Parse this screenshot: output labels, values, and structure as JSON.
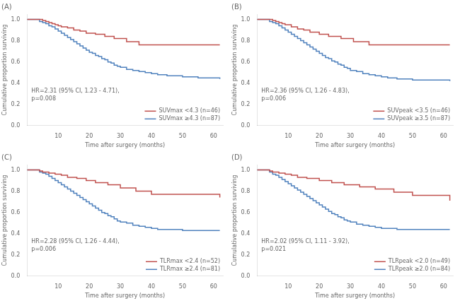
{
  "chart_data": [
    {
      "type": "step",
      "title": "(A)",
      "xlabel": "Time after surgery (months)",
      "ylabel": "Cumulative proportion surviving",
      "annotations": [
        "HR=2.31 (95% CI, 1.23 - 4.71),\np=0.008"
      ],
      "series": [
        {
          "name": "SUVmax <4.3 (n=46)",
          "color": "#c0504d",
          "x": [
            0,
            5,
            6,
            7,
            8,
            9,
            10,
            11,
            13,
            15,
            17,
            19,
            22,
            25,
            28,
            32,
            36,
            62
          ],
          "values": [
            1.0,
            0.99,
            0.98,
            0.97,
            0.96,
            0.95,
            0.94,
            0.93,
            0.92,
            0.9,
            0.89,
            0.87,
            0.86,
            0.84,
            0.82,
            0.79,
            0.76,
            0.76
          ]
        },
        {
          "name": "SUVmax ≥4.3 (n=87)",
          "color": "#4f81bd",
          "x": [
            0,
            4,
            5,
            6,
            7,
            8,
            9,
            10,
            11,
            12,
            13,
            14,
            15,
            16,
            17,
            18,
            19,
            20,
            21,
            22,
            23,
            24,
            25,
            26,
            27,
            28,
            29,
            30,
            32,
            34,
            36,
            38,
            40,
            42,
            45,
            50,
            55,
            62
          ],
          "values": [
            1.0,
            0.98,
            0.97,
            0.96,
            0.94,
            0.93,
            0.91,
            0.89,
            0.87,
            0.85,
            0.83,
            0.81,
            0.79,
            0.77,
            0.75,
            0.73,
            0.71,
            0.69,
            0.68,
            0.66,
            0.65,
            0.63,
            0.62,
            0.6,
            0.59,
            0.57,
            0.56,
            0.55,
            0.53,
            0.52,
            0.51,
            0.5,
            0.49,
            0.48,
            0.47,
            0.46,
            0.45,
            0.44
          ]
        }
      ],
      "xlim": [
        0,
        63
      ],
      "ylim": [
        0.0,
        1.05
      ],
      "xticks": [
        10,
        20,
        30,
        40,
        50,
        60
      ],
      "yticks": [
        {
          "value": 0.0,
          "label": "0.0"
        },
        0.2,
        0.4,
        0.6,
        0.8,
        {
          "value": 1.0,
          "label": "1.0"
        }
      ],
      "grid": false,
      "legend": "lower right"
    },
    {
      "type": "step",
      "title": "(B)",
      "xlabel": "Time after surgery (months)",
      "ylabel": "Cumulative proportion surviving",
      "annotations": [
        "HR=2.36 (95% CI, 1.26 - 4.83),\np=0.006"
      ],
      "series": [
        {
          "name": "SUVpeak <3.5 (n=46)",
          "color": "#c0504d",
          "x": [
            0,
            5,
            6,
            7,
            8,
            9,
            11,
            13,
            15,
            17,
            20,
            23,
            27,
            31,
            36,
            62
          ],
          "values": [
            1.0,
            0.99,
            0.98,
            0.97,
            0.96,
            0.95,
            0.93,
            0.91,
            0.9,
            0.88,
            0.86,
            0.84,
            0.82,
            0.79,
            0.76,
            0.76
          ]
        },
        {
          "name": "SUVpeak ≥3.5 (n=87)",
          "color": "#4f81bd",
          "x": [
            0,
            4,
            5,
            6,
            7,
            8,
            9,
            10,
            11,
            12,
            13,
            14,
            15,
            16,
            17,
            18,
            19,
            20,
            21,
            22,
            23,
            24,
            25,
            26,
            27,
            28,
            29,
            30,
            32,
            34,
            36,
            38,
            40,
            42,
            45,
            50,
            55,
            62
          ],
          "values": [
            1.0,
            0.98,
            0.97,
            0.96,
            0.94,
            0.92,
            0.9,
            0.88,
            0.86,
            0.84,
            0.82,
            0.8,
            0.78,
            0.76,
            0.74,
            0.72,
            0.7,
            0.68,
            0.66,
            0.64,
            0.63,
            0.61,
            0.6,
            0.58,
            0.57,
            0.55,
            0.54,
            0.52,
            0.51,
            0.49,
            0.48,
            0.47,
            0.46,
            0.45,
            0.44,
            0.43,
            0.43,
            0.42
          ]
        }
      ],
      "xlim": [
        0,
        63
      ],
      "ylim": [
        0.0,
        1.05
      ],
      "xticks": [
        10,
        20,
        30,
        40,
        50,
        60
      ],
      "yticks": [
        {
          "value": 0.0,
          "label": "0.0"
        },
        0.2,
        0.4,
        0.6,
        0.8,
        {
          "value": 1.0,
          "label": "1.0"
        }
      ],
      "grid": false,
      "legend": "lower right"
    },
    {
      "type": "step",
      "title": "(C)",
      "xlabel": "Time after surgery (months)",
      "ylabel": "Cumulative proportion surviving",
      "annotations": [
        "HR=2.28 (95% CI, 1.26 - 4.44),\np=0.006"
      ],
      "series": [
        {
          "name": "TLRmax <2.4 (n=52)",
          "color": "#c0504d",
          "x": [
            0,
            4,
            5,
            7,
            9,
            11,
            13,
            16,
            19,
            22,
            26,
            30,
            35,
            40,
            62
          ],
          "values": [
            1.0,
            0.99,
            0.98,
            0.97,
            0.96,
            0.95,
            0.93,
            0.92,
            0.9,
            0.88,
            0.86,
            0.83,
            0.8,
            0.77,
            0.74
          ]
        },
        {
          "name": "TLRmax ≥2.4 (n=81)",
          "color": "#4f81bd",
          "x": [
            0,
            4,
            5,
            6,
            7,
            8,
            9,
            10,
            11,
            12,
            13,
            14,
            15,
            16,
            17,
            18,
            19,
            20,
            21,
            22,
            23,
            24,
            25,
            26,
            27,
            28,
            29,
            30,
            32,
            34,
            36,
            38,
            40,
            42,
            45,
            50,
            55,
            62
          ],
          "values": [
            1.0,
            0.98,
            0.97,
            0.96,
            0.94,
            0.92,
            0.9,
            0.88,
            0.86,
            0.84,
            0.82,
            0.8,
            0.78,
            0.76,
            0.74,
            0.72,
            0.7,
            0.68,
            0.66,
            0.64,
            0.62,
            0.6,
            0.59,
            0.57,
            0.56,
            0.54,
            0.52,
            0.51,
            0.5,
            0.48,
            0.47,
            0.46,
            0.45,
            0.44,
            0.44,
            0.43,
            0.43,
            0.43
          ]
        }
      ],
      "xlim": [
        0,
        63
      ],
      "ylim": [
        0.0,
        1.05
      ],
      "xticks": [
        10,
        20,
        30,
        40,
        50,
        60
      ],
      "yticks": [
        {
          "value": 0.0,
          "label": "0.0"
        },
        0.2,
        0.4,
        0.6,
        0.8,
        {
          "value": 1.0,
          "label": "1.0"
        }
      ],
      "grid": false,
      "legend": "lower right"
    },
    {
      "type": "step",
      "title": "(D)",
      "xlabel": "Time after surgery (months)",
      "ylabel": "Cumulative proportion surviving",
      "annotations": [
        "HR=2.02 (95% CI, 1.11 - 3.92),\np=0.021"
      ],
      "series": [
        {
          "name": "TLRpeak <2.0 (n=49)",
          "color": "#c0504d",
          "x": [
            0,
            4,
            5,
            7,
            9,
            11,
            13,
            16,
            20,
            24,
            28,
            33,
            38,
            44,
            50,
            62
          ],
          "values": [
            1.0,
            0.99,
            0.98,
            0.97,
            0.96,
            0.95,
            0.93,
            0.92,
            0.9,
            0.88,
            0.86,
            0.84,
            0.82,
            0.79,
            0.76,
            0.71
          ]
        },
        {
          "name": "TLRpeak ≥2.0 (n=84)",
          "color": "#4f81bd",
          "x": [
            0,
            4,
            5,
            6,
            7,
            8,
            9,
            10,
            11,
            12,
            13,
            14,
            15,
            16,
            17,
            18,
            19,
            20,
            21,
            22,
            23,
            24,
            25,
            26,
            27,
            28,
            29,
            30,
            32,
            34,
            36,
            38,
            40,
            42,
            45,
            50,
            55,
            62
          ],
          "values": [
            1.0,
            0.98,
            0.96,
            0.95,
            0.93,
            0.91,
            0.89,
            0.87,
            0.85,
            0.83,
            0.81,
            0.79,
            0.77,
            0.75,
            0.73,
            0.71,
            0.69,
            0.67,
            0.65,
            0.63,
            0.61,
            0.59,
            0.58,
            0.56,
            0.55,
            0.53,
            0.52,
            0.51,
            0.49,
            0.48,
            0.47,
            0.46,
            0.45,
            0.45,
            0.44,
            0.44,
            0.44,
            0.44
          ]
        }
      ],
      "xlim": [
        0,
        63
      ],
      "ylim": [
        0.0,
        1.05
      ],
      "xticks": [
        10,
        20,
        30,
        40,
        50,
        60
      ],
      "yticks": [
        {
          "value": 0.0,
          "label": "0.0"
        },
        0.2,
        0.4,
        0.6,
        0.8,
        {
          "value": 1.0,
          "label": "1.0"
        }
      ],
      "grid": false,
      "legend": "lower right"
    }
  ]
}
